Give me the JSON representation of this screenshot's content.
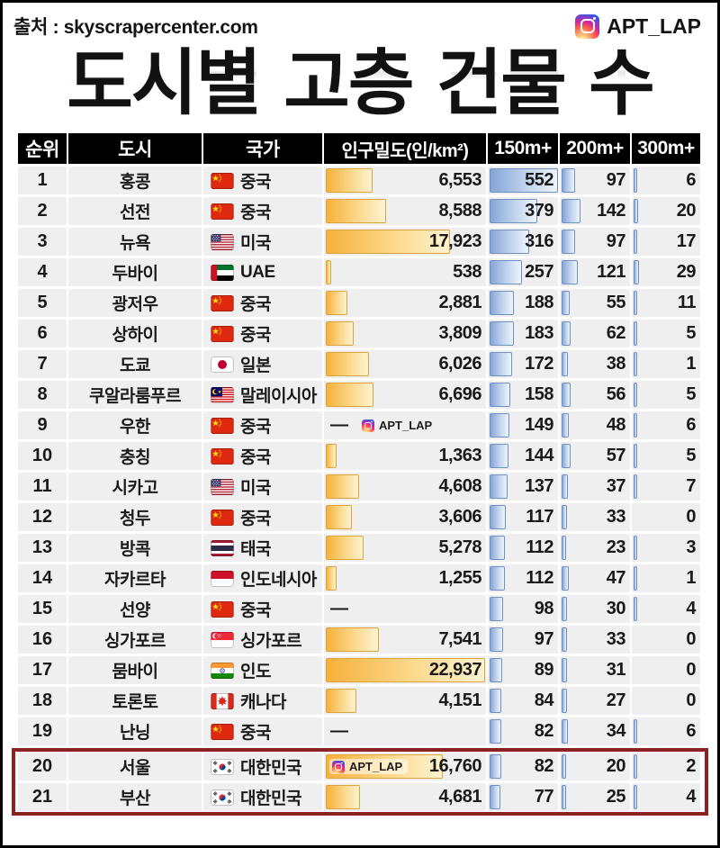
{
  "topbar": {
    "source": "출처 : skyscrapercenter.com",
    "handle": "APT_LAP"
  },
  "title": "도시별 고층 건물 수",
  "watermark_label": "APT_LAP",
  "chart_data": {
    "type": "table",
    "title": "도시별 고층 건물 수",
    "source": "skyscrapercenter.com",
    "columns": [
      "순위",
      "도시",
      "국가",
      "인구밀도(인/km²)",
      "150m+",
      "200m+",
      "300m+"
    ],
    "density_max": 22937,
    "count_bar_max": 552,
    "colors": {
      "density_bar": "#f6b13c",
      "count_bar": "#85a5d7",
      "highlight_border": "#8b2222",
      "header_bg": "#000000",
      "row_bg": "#efefef"
    },
    "highlight_ranks": [
      20,
      21
    ],
    "rows": [
      {
        "rank": 1,
        "city": "홍콩",
        "flag": "cn",
        "country": "중국",
        "density": "6,553",
        "density_val": 6553,
        "m150": 552,
        "m200": 97,
        "m300": 6,
        "watermark": null
      },
      {
        "rank": 2,
        "city": "선전",
        "flag": "cn",
        "country": "중국",
        "density": "8,588",
        "density_val": 8588,
        "m150": 379,
        "m200": 142,
        "m300": 20,
        "watermark": null
      },
      {
        "rank": 3,
        "city": "뉴욕",
        "flag": "us",
        "country": "미국",
        "density": "17,923",
        "density_val": 17923,
        "m150": 316,
        "m200": 97,
        "m300": 17,
        "watermark": null
      },
      {
        "rank": 4,
        "city": "두바이",
        "flag": "ae",
        "country": "UAE",
        "density": "538",
        "density_val": 538,
        "m150": 257,
        "m200": 121,
        "m300": 29,
        "watermark": null
      },
      {
        "rank": 5,
        "city": "광저우",
        "flag": "cn",
        "country": "중국",
        "density": "2,881",
        "density_val": 2881,
        "m150": 188,
        "m200": 55,
        "m300": 11,
        "watermark": null
      },
      {
        "rank": 6,
        "city": "상하이",
        "flag": "cn",
        "country": "중국",
        "density": "3,809",
        "density_val": 3809,
        "m150": 183,
        "m200": 62,
        "m300": 5,
        "watermark": null
      },
      {
        "rank": 7,
        "city": "도쿄",
        "flag": "jp",
        "country": "일본",
        "density": "6,026",
        "density_val": 6026,
        "m150": 172,
        "m200": 38,
        "m300": 1,
        "watermark": null
      },
      {
        "rank": 8,
        "city": "쿠알라룸푸르",
        "flag": "my",
        "country": "말레이시아",
        "density": "6,696",
        "density_val": 6696,
        "m150": 158,
        "m200": 56,
        "m300": 5,
        "watermark": null
      },
      {
        "rank": 9,
        "city": "우한",
        "flag": "cn",
        "country": "중국",
        "density": "—",
        "density_val": null,
        "m150": 149,
        "m200": 48,
        "m300": 6,
        "watermark": "center"
      },
      {
        "rank": 10,
        "city": "충칭",
        "flag": "cn",
        "country": "중국",
        "density": "1,363",
        "density_val": 1363,
        "m150": 144,
        "m200": 57,
        "m300": 5,
        "watermark": null
      },
      {
        "rank": 11,
        "city": "시카고",
        "flag": "us",
        "country": "미국",
        "density": "4,608",
        "density_val": 4608,
        "m150": 137,
        "m200": 37,
        "m300": 7,
        "watermark": null
      },
      {
        "rank": 12,
        "city": "청두",
        "flag": "cn",
        "country": "중국",
        "density": "3,606",
        "density_val": 3606,
        "m150": 117,
        "m200": 33,
        "m300": 0,
        "watermark": null
      },
      {
        "rank": 13,
        "city": "방콕",
        "flag": "th",
        "country": "태국",
        "density": "5,278",
        "density_val": 5278,
        "m150": 112,
        "m200": 23,
        "m300": 3,
        "watermark": null
      },
      {
        "rank": 14,
        "city": "자카르타",
        "flag": "id",
        "country": "인도네시아",
        "density": "1,255",
        "density_val": 1255,
        "m150": 112,
        "m200": 47,
        "m300": 1,
        "watermark": null
      },
      {
        "rank": 15,
        "city": "선양",
        "flag": "cn",
        "country": "중국",
        "density": "—",
        "density_val": null,
        "m150": 98,
        "m200": 30,
        "m300": 4,
        "watermark": null
      },
      {
        "rank": 16,
        "city": "싱가포르",
        "flag": "sg",
        "country": "싱가포르",
        "density": "7,541",
        "density_val": 7541,
        "m150": 97,
        "m200": 33,
        "m300": 0,
        "watermark": null
      },
      {
        "rank": 17,
        "city": "뭄바이",
        "flag": "in",
        "country": "인도",
        "density": "22,937",
        "density_val": 22937,
        "m150": 89,
        "m200": 31,
        "m300": 0,
        "watermark": null
      },
      {
        "rank": 18,
        "city": "토론토",
        "flag": "ca",
        "country": "캐나다",
        "density": "4,151",
        "density_val": 4151,
        "m150": 84,
        "m200": 27,
        "m300": 0,
        "watermark": null
      },
      {
        "rank": 19,
        "city": "난닝",
        "flag": "cn",
        "country": "중국",
        "density": "—",
        "density_val": null,
        "m150": 82,
        "m200": 34,
        "m300": 6,
        "watermark": null
      },
      {
        "rank": 20,
        "city": "서울",
        "flag": "kr",
        "country": "대한민국",
        "density": "16,760",
        "density_val": 16760,
        "m150": 82,
        "m200": 20,
        "m300": 2,
        "watermark": "bar"
      },
      {
        "rank": 21,
        "city": "부산",
        "flag": "kr",
        "country": "대한민국",
        "density": "4,681",
        "density_val": 4681,
        "m150": 77,
        "m200": 25,
        "m300": 4,
        "watermark": null
      }
    ]
  }
}
